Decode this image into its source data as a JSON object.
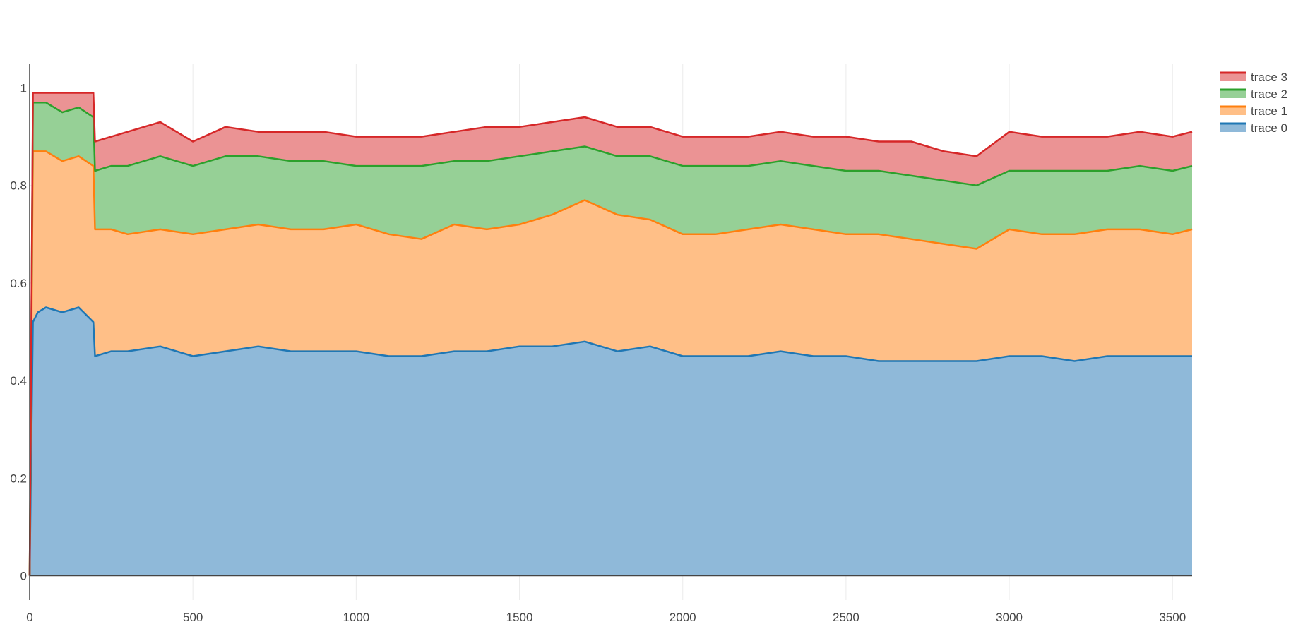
{
  "chart_data": {
    "type": "area",
    "stacked": true,
    "title": "",
    "xlabel": "",
    "ylabel": "",
    "xlim": [
      0,
      3560
    ],
    "ylim": [
      -0.05,
      1.05
    ],
    "x_ticks": [
      0,
      500,
      1000,
      1500,
      2000,
      2500,
      3000,
      3500
    ],
    "x_tick_labels": [
      "0",
      "500",
      "1000",
      "1500",
      "2000",
      "2500",
      "3000",
      "3500"
    ],
    "y_ticks": [
      0,
      0.2,
      0.4,
      0.6,
      0.8,
      1
    ],
    "y_tick_labels": [
      "0",
      "0.2",
      "0.4",
      "0.6",
      "0.8",
      "1"
    ],
    "grid": true,
    "legend_position": "top-right",
    "x": [
      0,
      10,
      25,
      50,
      100,
      150,
      195,
      200,
      250,
      300,
      400,
      500,
      600,
      700,
      800,
      900,
      1000,
      1100,
      1200,
      1300,
      1400,
      1500,
      1600,
      1700,
      1800,
      1900,
      2000,
      2100,
      2200,
      2300,
      2400,
      2500,
      2600,
      2700,
      2800,
      2900,
      3000,
      3100,
      3200,
      3300,
      3400,
      3500,
      3560
    ],
    "series": [
      {
        "name": "trace 0",
        "color": "#1f77b4",
        "fill_color": "#8fb9d9",
        "values": [
          0.0,
          0.52,
          0.54,
          0.55,
          0.54,
          0.55,
          0.52,
          0.45,
          0.46,
          0.46,
          0.47,
          0.45,
          0.46,
          0.47,
          0.46,
          0.46,
          0.46,
          0.45,
          0.45,
          0.46,
          0.46,
          0.47,
          0.47,
          0.48,
          0.46,
          0.47,
          0.45,
          0.45,
          0.45,
          0.46,
          0.45,
          0.45,
          0.44,
          0.44,
          0.44,
          0.44,
          0.45,
          0.45,
          0.44,
          0.45,
          0.45,
          0.45,
          0.45
        ]
      },
      {
        "name": "trace 1",
        "color": "#ff7f0e",
        "fill_color": "#ffbf87",
        "values": [
          0.0,
          0.35,
          0.33,
          0.32,
          0.31,
          0.31,
          0.32,
          0.26,
          0.25,
          0.24,
          0.24,
          0.25,
          0.25,
          0.25,
          0.25,
          0.25,
          0.26,
          0.25,
          0.24,
          0.26,
          0.25,
          0.25,
          0.27,
          0.29,
          0.28,
          0.26,
          0.25,
          0.25,
          0.26,
          0.26,
          0.26,
          0.25,
          0.26,
          0.25,
          0.24,
          0.23,
          0.26,
          0.25,
          0.26,
          0.26,
          0.26,
          0.25,
          0.26
        ]
      },
      {
        "name": "trace 2",
        "color": "#2ca02c",
        "fill_color": "#96d096",
        "values": [
          0.0,
          0.1,
          0.1,
          0.1,
          0.1,
          0.1,
          0.1,
          0.12,
          0.13,
          0.14,
          0.15,
          0.14,
          0.15,
          0.14,
          0.14,
          0.14,
          0.12,
          0.14,
          0.15,
          0.13,
          0.14,
          0.14,
          0.13,
          0.11,
          0.12,
          0.13,
          0.14,
          0.14,
          0.13,
          0.13,
          0.13,
          0.13,
          0.13,
          0.13,
          0.13,
          0.13,
          0.12,
          0.13,
          0.13,
          0.12,
          0.13,
          0.13,
          0.13
        ]
      },
      {
        "name": "trace 3",
        "color": "#d62728",
        "fill_color": "#eb9394",
        "values": [
          0.0,
          0.02,
          0.02,
          0.02,
          0.04,
          0.03,
          0.05,
          0.06,
          0.06,
          0.07,
          0.07,
          0.05,
          0.06,
          0.05,
          0.06,
          0.06,
          0.06,
          0.06,
          0.06,
          0.06,
          0.07,
          0.06,
          0.06,
          0.06,
          0.06,
          0.06,
          0.06,
          0.06,
          0.06,
          0.06,
          0.06,
          0.07,
          0.06,
          0.07,
          0.06,
          0.06,
          0.08,
          0.07,
          0.07,
          0.07,
          0.07,
          0.07,
          0.07
        ]
      }
    ]
  }
}
